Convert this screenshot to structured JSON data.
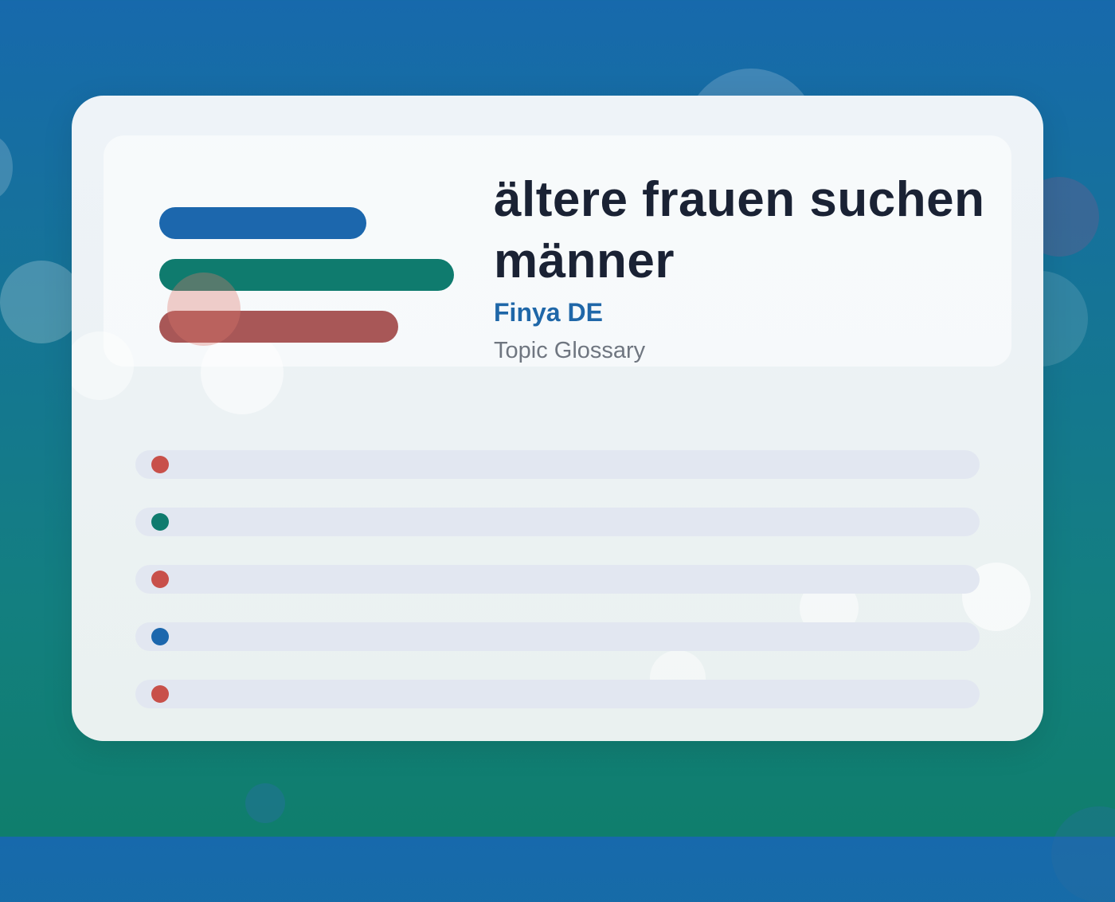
{
  "header": {
    "title": "ältere frauen suchen männer",
    "brand": "Finya DE",
    "subtitle": "Topic Glossary"
  },
  "colors": {
    "blue": "#1c67ad",
    "green": "#0f7b6e",
    "red": "#a85757",
    "dot_red": "#c8504a",
    "dot_green": "#0f7b6e",
    "dot_blue": "#1c67ad"
  },
  "rows": [
    {
      "dot_color": "#c8504a"
    },
    {
      "dot_color": "#0f7b6e"
    },
    {
      "dot_color": "#c8504a"
    },
    {
      "dot_color": "#1c67ad"
    },
    {
      "dot_color": "#c8504a"
    }
  ]
}
